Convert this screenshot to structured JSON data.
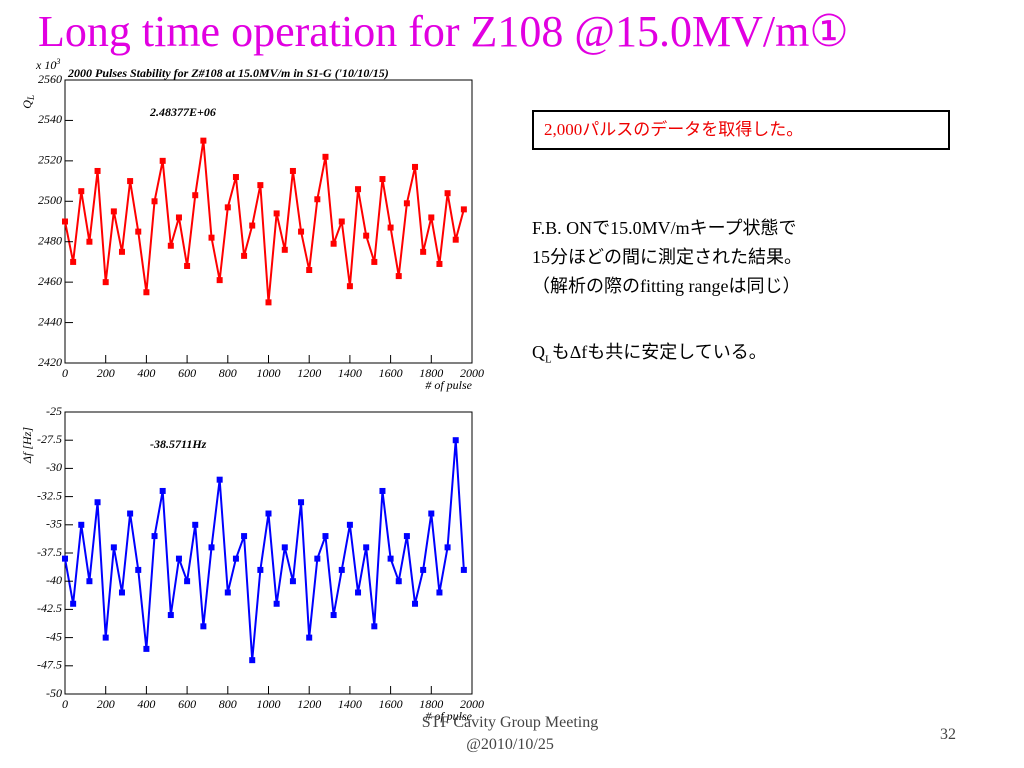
{
  "slide": {
    "title": "Long time operation for Z108 @15.0MV/m①",
    "box_text": "2,000パルスのデータを取得した。",
    "paragraph": [
      "F.B. ONで15.0MV/mキープ状態で",
      "15分ほどの間に測定された結果。",
      "（解析の際のfitting rangeは同じ）"
    ],
    "note_q": "Q",
    "note_sub": "L",
    "note_rest": "もΔfも共に安定している。",
    "footer": [
      "STF Cavity Group Meeting",
      "@2010/10/25"
    ],
    "page_number": "32"
  },
  "chart_data": [
    {
      "type": "line",
      "title": "2000 Pulses Stability for Z#108 at 15.0MV/m in S1-G ('10/10/15)",
      "y_label": "Q",
      "y_label_sub": "L",
      "y_scale_label": "x 10",
      "y_scale_exp": "3",
      "x_label": "# of pulse",
      "annotation": "2.48377E+06",
      "xlim": [
        0,
        2000
      ],
      "xticks": [
        0,
        200,
        400,
        600,
        800,
        1000,
        1200,
        1400,
        1600,
        1800,
        2000
      ],
      "ylim": [
        2420,
        2560
      ],
      "yticks": [
        2420,
        2440,
        2460,
        2480,
        2500,
        2520,
        2540,
        2560
      ],
      "x": [
        0,
        40,
        80,
        120,
        160,
        200,
        240,
        280,
        320,
        360,
        400,
        440,
        480,
        520,
        560,
        600,
        640,
        680,
        720,
        760,
        800,
        840,
        880,
        920,
        960,
        1000,
        1040,
        1080,
        1120,
        1160,
        1200,
        1240,
        1280,
        1320,
        1360,
        1400,
        1440,
        1480,
        1520,
        1560,
        1600,
        1640,
        1680,
        1720,
        1760,
        1800,
        1840,
        1880,
        1920,
        1960
      ],
      "series": [
        {
          "color": "#ff0000",
          "values": [
            2490,
            2470,
            2505,
            2480,
            2515,
            2460,
            2495,
            2475,
            2510,
            2485,
            2455,
            2500,
            2520,
            2478,
            2492,
            2468,
            2503,
            2530,
            2482,
            2461,
            2497,
            2512,
            2473,
            2488,
            2508,
            2450,
            2494,
            2476,
            2515,
            2485,
            2466,
            2501,
            2522,
            2479,
            2490,
            2458,
            2506,
            2483,
            2470,
            2511,
            2487,
            2463,
            2499,
            2517,
            2475,
            2492,
            2469,
            2504,
            2481,
            2496
          ]
        }
      ]
    },
    {
      "type": "line",
      "y_label": "Δf [Hz]",
      "x_label": "# of pulse",
      "annotation": "-38.5711Hz",
      "xlim": [
        0,
        2000
      ],
      "xticks": [
        0,
        200,
        400,
        600,
        800,
        1000,
        1200,
        1400,
        1600,
        1800,
        2000
      ],
      "ylim": [
        -50,
        -25
      ],
      "yticks": [
        -50,
        -47.5,
        -45,
        -42.5,
        -40,
        -37.5,
        -35,
        -32.5,
        -30,
        -27.5,
        -25
      ],
      "x": [
        0,
        40,
        80,
        120,
        160,
        200,
        240,
        280,
        320,
        360,
        400,
        440,
        480,
        520,
        560,
        600,
        640,
        680,
        720,
        760,
        800,
        840,
        880,
        920,
        960,
        1000,
        1040,
        1080,
        1120,
        1160,
        1200,
        1240,
        1280,
        1320,
        1360,
        1400,
        1440,
        1480,
        1520,
        1560,
        1600,
        1640,
        1680,
        1720,
        1760,
        1800,
        1840,
        1880,
        1920,
        1960
      ],
      "series": [
        {
          "color": "#0000ff",
          "values": [
            -38,
            -42,
            -35,
            -40,
            -33,
            -45,
            -37,
            -41,
            -34,
            -39,
            -46,
            -36,
            -32,
            -43,
            -38,
            -40,
            -35,
            -44,
            -37,
            -31,
            -41,
            -38,
            -36,
            -47,
            -39,
            -34,
            -42,
            -37,
            -40,
            -33,
            -45,
            -38,
            -36,
            -43,
            -39,
            -35,
            -41,
            -37,
            -44,
            -32,
            -38,
            -40,
            -36,
            -42,
            -39,
            -34,
            -41,
            -37,
            -27.5,
            -39
          ]
        }
      ]
    }
  ]
}
